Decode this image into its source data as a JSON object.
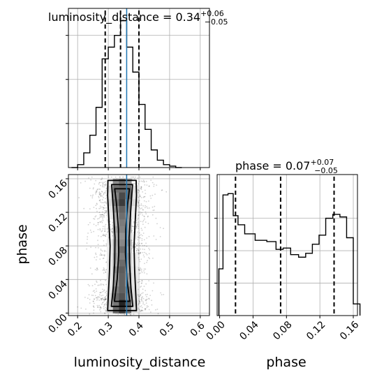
{
  "titles": {
    "top": "luminosity_distance = 0.34",
    "top_sup": "+0.06",
    "top_sub": "−0.05",
    "right": "phase = 0.07",
    "right_sup": "+0.07",
    "right_sub": "−0.05"
  },
  "axes": {
    "x_left_label": "luminosity_distance",
    "x_right_label": "phase",
    "y_label": "phase"
  },
  "colors": {
    "truth": "#1f77b4",
    "hist": "#000000",
    "grid": "#b0b0b0",
    "scatter": "#000000"
  },
  "chart_data": [
    {
      "type": "histogram",
      "panel": "luminosity_distance marginal",
      "xlim": [
        0.17,
        0.63
      ],
      "grid": true,
      "bins": [
        {
          "x": 0.19,
          "y": 0
        },
        {
          "x": 0.21,
          "y": 0.02
        },
        {
          "x": 0.23,
          "y": 0.1
        },
        {
          "x": 0.25,
          "y": 0.22
        },
        {
          "x": 0.27,
          "y": 0.41
        },
        {
          "x": 0.29,
          "y": 0.74
        },
        {
          "x": 0.31,
          "y": 0.82
        },
        {
          "x": 0.33,
          "y": 0.9
        },
        {
          "x": 0.35,
          "y": 1.0
        },
        {
          "x": 0.37,
          "y": 0.82
        },
        {
          "x": 0.39,
          "y": 0.65
        },
        {
          "x": 0.41,
          "y": 0.43
        },
        {
          "x": 0.43,
          "y": 0.26
        },
        {
          "x": 0.45,
          "y": 0.12
        },
        {
          "x": 0.47,
          "y": 0.05
        },
        {
          "x": 0.49,
          "y": 0.02
        },
        {
          "x": 0.51,
          "y": 0.01
        },
        {
          "x": 0.53,
          "y": 0.0
        }
      ],
      "quantiles": [
        0.29,
        0.34,
        0.4
      ],
      "truth": 0.36,
      "xticks": [
        0.2,
        0.3,
        0.4,
        0.5,
        0.6
      ]
    },
    {
      "type": "histogram",
      "panel": "phase marginal",
      "xlim": [
        -0.003,
        0.165
      ],
      "grid": true,
      "bins": [
        {
          "x": 0.0015,
          "y": 0.36
        },
        {
          "x": 0.0065,
          "y": 0.93
        },
        {
          "x": 0.0135,
          "y": 0.94
        },
        {
          "x": 0.019,
          "y": 0.77
        },
        {
          "x": 0.025,
          "y": 0.7
        },
        {
          "x": 0.035,
          "y": 0.63
        },
        {
          "x": 0.05,
          "y": 0.58
        },
        {
          "x": 0.063,
          "y": 0.57
        },
        {
          "x": 0.072,
          "y": 0.51
        },
        {
          "x": 0.08,
          "y": 0.52
        },
        {
          "x": 0.09,
          "y": 0.47
        },
        {
          "x": 0.099,
          "y": 0.45
        },
        {
          "x": 0.107,
          "y": 0.48
        },
        {
          "x": 0.115,
          "y": 0.55
        },
        {
          "x": 0.123,
          "y": 0.62
        },
        {
          "x": 0.131,
          "y": 0.75
        },
        {
          "x": 0.14,
          "y": 0.78
        },
        {
          "x": 0.148,
          "y": 0.76
        },
        {
          "x": 0.156,
          "y": 0.6
        },
        {
          "x": 0.164,
          "y": 0.09
        }
      ],
      "quantiles": [
        0.019,
        0.073,
        0.137
      ],
      "xticks": [
        0.0,
        0.04,
        0.08,
        0.12,
        0.16
      ]
    },
    {
      "type": "scatter",
      "panel": "2D density phase vs luminosity_distance",
      "xlabel": "luminosity_distance",
      "ylabel": "phase",
      "xlim": [
        0.17,
        0.63
      ],
      "ylim": [
        -0.003,
        0.165
      ],
      "xticks": [
        0.2,
        0.3,
        0.4,
        0.5,
        0.6
      ],
      "yticks": [
        0.0,
        0.04,
        0.08,
        0.12,
        0.16
      ],
      "truth_x": 0.36,
      "center_x": 0.345,
      "spread_x": 0.045,
      "contour_half_widths": [
        {
          "level": 1,
          "values": [
            [
              0.003,
              0.047
            ],
            [
              0.02,
              0.045
            ],
            [
              0.05,
              0.041
            ],
            [
              0.08,
              0.039
            ],
            [
              0.11,
              0.043
            ],
            [
              0.14,
              0.047
            ],
            [
              0.158,
              0.046
            ]
          ]
        },
        {
          "level": 2,
          "values": [
            [
              0.008,
              0.035
            ],
            [
              0.03,
              0.029
            ],
            [
              0.06,
              0.024
            ],
            [
              0.09,
              0.023
            ],
            [
              0.12,
              0.028
            ],
            [
              0.153,
              0.034
            ]
          ]
        },
        {
          "level": 3,
          "values": [
            [
              0.014,
              0.025
            ],
            [
              0.04,
              0.016
            ],
            [
              0.07,
              0.011
            ],
            [
              0.1,
              0.012
            ],
            [
              0.13,
              0.018
            ],
            [
              0.148,
              0.024
            ]
          ]
        }
      ]
    }
  ]
}
